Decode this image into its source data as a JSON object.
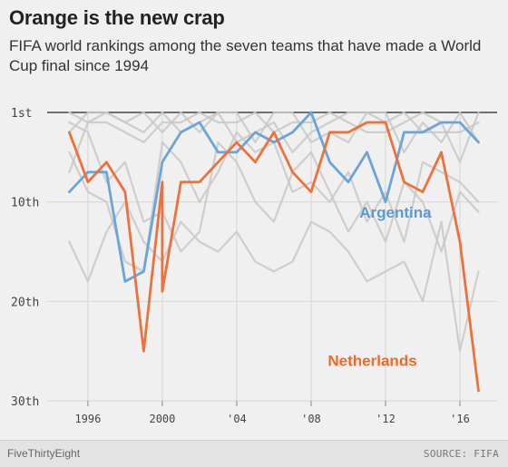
{
  "header": {
    "title": "Orange is the new crap",
    "subtitle": "FIFA world rankings among the seven teams that have made a World Cup final since 1994"
  },
  "footer": {
    "brand": "FiveThirtyEight",
    "source": "SOURCE: FIFA"
  },
  "chart_data": {
    "type": "line",
    "title": "Orange is the new crap",
    "subtitle": "FIFA world rankings among the seven teams that have made a World Cup final since 1994",
    "xlabel": "",
    "ylabel": "",
    "x": [
      1995,
      1996,
      1997,
      1998,
      1999,
      2000,
      2001,
      2002,
      2003,
      2004,
      2005,
      2006,
      2007,
      2008,
      2009,
      2010,
      2011,
      2012,
      2013,
      2014,
      2015,
      2016,
      2017
    ],
    "xlim": [
      1994.2,
      2018.0
    ],
    "ylim": [
      30,
      1
    ],
    "y_inverted": true,
    "grid": true,
    "x_ticks": [
      {
        "value": 1996,
        "label": "1996"
      },
      {
        "value": 2000,
        "label": "2000"
      },
      {
        "value": 2004,
        "label": "'04"
      },
      {
        "value": 2008,
        "label": "'08"
      },
      {
        "value": 2012,
        "label": "'12"
      },
      {
        "value": 2016,
        "label": "'16"
      }
    ],
    "y_ticks": [
      {
        "value": 1,
        "label": "1st"
      },
      {
        "value": 10,
        "label": "10th"
      },
      {
        "value": 20,
        "label": "20th"
      },
      {
        "value": 30,
        "label": "30th"
      }
    ],
    "highlight_series": [
      {
        "name": "Argentina",
        "color": "#6ba4d8",
        "values": [
          9,
          7,
          7,
          18,
          17,
          6,
          3,
          2,
          5,
          5,
          3,
          4,
          3,
          1,
          6,
          8,
          5,
          10,
          3,
          3,
          2,
          2,
          4
        ]
      },
      {
        "name": "Netherlands",
        "color": "#ed713a",
        "values": [
          3,
          8,
          6,
          9,
          25,
          8,
          19,
          8,
          8,
          6,
          4,
          6,
          3,
          7,
          9,
          3,
          3,
          2,
          2,
          8,
          9,
          5,
          14,
          29
        ]
      }
    ],
    "netherlands_x": [
      1995,
      1996,
      1997,
      1998,
      1999,
      2000,
      2000,
      2001,
      2002,
      2003,
      2004,
      2005,
      2006,
      2007,
      2008,
      2009,
      2010,
      2011,
      2012,
      2013,
      2014,
      2015,
      2016,
      2017
    ],
    "background_series": [
      {
        "values": [
          7,
          2,
          2,
          3,
          4,
          2,
          2,
          1,
          2,
          2,
          1,
          3,
          2,
          2,
          1,
          2,
          3,
          3,
          2,
          1,
          2,
          6,
          1
        ]
      },
      {
        "values": [
          1,
          2,
          1,
          2,
          3,
          1,
          3,
          2,
          1,
          4,
          3,
          2,
          5,
          3,
          2,
          1,
          1,
          2,
          1,
          3,
          3,
          3,
          2
        ]
      },
      {
        "values": [
          3,
          1,
          1,
          2,
          1,
          3,
          1,
          3,
          1,
          1,
          4,
          1,
          1,
          4,
          3,
          4,
          1,
          1,
          5,
          2,
          4,
          1,
          4
        ]
      },
      {
        "values": [
          14,
          18,
          13,
          10,
          14,
          16,
          12,
          14,
          15,
          13,
          16,
          17,
          16,
          12,
          13,
          15,
          18,
          17,
          16,
          20,
          12,
          25,
          17
        ]
      },
      {
        "values": [
          2,
          3,
          8,
          6,
          12,
          11,
          15,
          13,
          4,
          6,
          10,
          12,
          7,
          5,
          9,
          13,
          10,
          14,
          8,
          10,
          15,
          9,
          11
        ]
      },
      {
        "values": [
          5,
          9,
          10,
          16,
          17,
          4,
          6,
          10,
          7,
          3,
          5,
          4,
          9,
          8,
          10,
          7,
          12,
          9,
          14,
          6,
          7,
          8,
          10
        ]
      }
    ],
    "background_color": "#c8c8c8",
    "series_labels": [
      {
        "name": "Argentina",
        "x": 2010.6,
        "y": 11.6,
        "color": "#5a9ad4"
      },
      {
        "name": "Netherlands",
        "x": 2008.9,
        "y": 26.5,
        "color": "#ed6a2c"
      }
    ]
  }
}
